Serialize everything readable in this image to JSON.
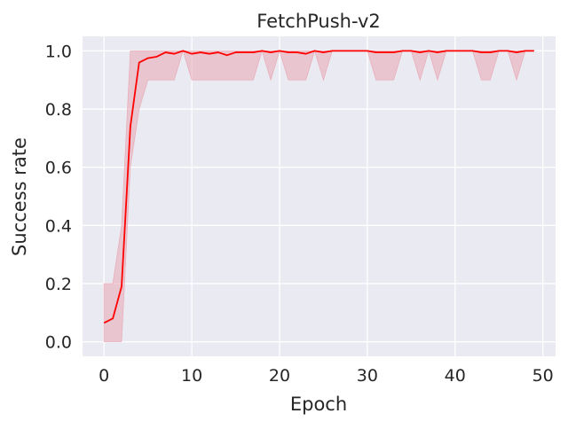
{
  "chart_data": {
    "type": "line",
    "title": "FetchPush-v2",
    "xlabel": "Epoch",
    "ylabel": "Success rate",
    "xlim": [
      -2.45,
      51.45
    ],
    "ylim": [
      -0.05,
      1.05
    ],
    "xticks": [
      0,
      10,
      20,
      30,
      40,
      50
    ],
    "xtick_labels": [
      "0",
      "10",
      "20",
      "30",
      "40",
      "50"
    ],
    "yticks": [
      0.0,
      0.2,
      0.4,
      0.6,
      0.8,
      1.0
    ],
    "ytick_labels": [
      "0.0",
      "0.2",
      "0.4",
      "0.6",
      "0.8",
      "1.0"
    ],
    "grid": true,
    "legend": "none",
    "colors": {
      "background": "#EAEAF2",
      "grid": "#FFFFFF",
      "line": "#FF0000",
      "band": "#E8A0AC"
    },
    "series": [
      {
        "x": [
          0,
          1,
          2,
          3,
          4,
          5,
          6,
          7,
          8,
          9,
          10,
          11,
          12,
          13,
          14,
          15,
          16,
          17,
          18,
          19,
          20,
          21,
          22,
          23,
          24,
          25,
          26,
          27,
          28,
          29,
          30,
          31,
          32,
          33,
          34,
          35,
          36,
          37,
          38,
          39,
          40,
          41,
          42,
          43,
          44,
          45,
          46,
          47,
          48,
          49
        ],
        "mean": [
          0.065,
          0.08,
          0.19,
          0.74,
          0.96,
          0.975,
          0.98,
          0.995,
          0.99,
          1.0,
          0.99,
          0.995,
          0.99,
          0.995,
          0.985,
          0.995,
          0.995,
          0.995,
          1.0,
          0.995,
          1.0,
          0.995,
          0.995,
          0.99,
          1.0,
          0.995,
          1.0,
          1.0,
          1.0,
          1.0,
          1.0,
          0.995,
          0.995,
          0.995,
          1.0,
          1.0,
          0.995,
          1.0,
          0.995,
          1.0,
          1.0,
          1.0,
          1.0,
          0.995,
          0.995,
          1.0,
          1.0,
          0.995,
          1.0,
          1.0
        ],
        "lower": [
          0.0,
          0.0,
          0.0,
          0.6,
          0.8,
          0.9,
          0.9,
          0.9,
          0.9,
          1.0,
          0.9,
          0.9,
          0.9,
          0.9,
          0.9,
          0.9,
          0.9,
          0.9,
          1.0,
          0.9,
          1.0,
          0.9,
          0.9,
          0.9,
          1.0,
          0.9,
          1.0,
          1.0,
          1.0,
          1.0,
          1.0,
          0.9,
          0.9,
          0.9,
          1.0,
          1.0,
          0.9,
          1.0,
          0.9,
          1.0,
          1.0,
          1.0,
          1.0,
          0.9,
          0.9,
          1.0,
          1.0,
          0.9,
          1.0,
          1.0
        ],
        "upper": [
          0.2,
          0.2,
          0.4,
          1.0,
          1.0,
          1.0,
          1.0,
          1.0,
          1.0,
          1.0,
          1.0,
          1.0,
          1.0,
          1.0,
          1.0,
          1.0,
          1.0,
          1.0,
          1.0,
          1.0,
          1.0,
          1.0,
          1.0,
          1.0,
          1.0,
          1.0,
          1.0,
          1.0,
          1.0,
          1.0,
          1.0,
          1.0,
          1.0,
          1.0,
          1.0,
          1.0,
          1.0,
          1.0,
          1.0,
          1.0,
          1.0,
          1.0,
          1.0,
          1.0,
          1.0,
          1.0,
          1.0,
          1.0,
          1.0,
          1.0
        ]
      }
    ]
  }
}
